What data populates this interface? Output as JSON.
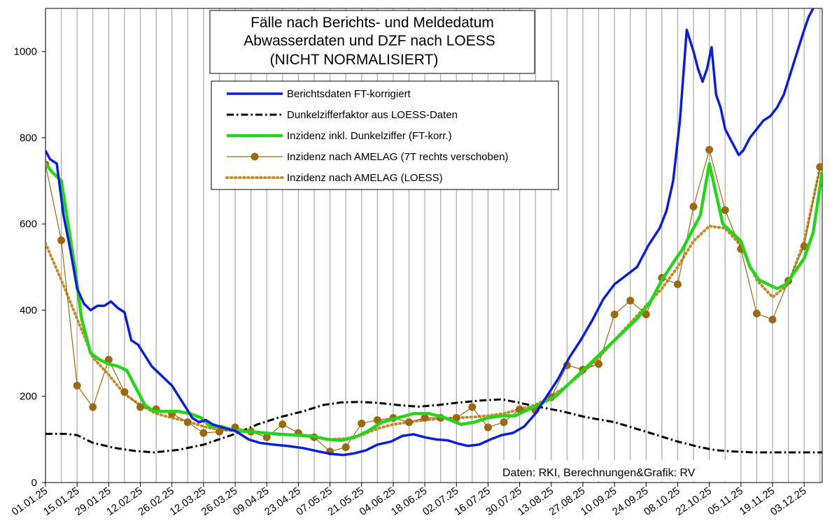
{
  "chart_data": {
    "type": "line",
    "title": [
      "Fälle nach Berichts- und Meldedatum",
      "Abwasserdaten und DZF nach LOESS",
      "(NICHT NORMALISIERT)"
    ],
    "xlabel": "",
    "ylabel": "",
    "credit": "Daten: RKI, Berechnungen&Grafik: RV",
    "ylim": [
      0,
      1100
    ],
    "yticks": [
      0,
      200,
      400,
      600,
      800,
      1000
    ],
    "xlim": [
      "2025-01-01",
      "2025-12-11"
    ],
    "xticks": [
      "01.01.25",
      "15.01.25",
      "29.01.25",
      "12.02.25",
      "26.02.25",
      "12.03.25",
      "26.03.25",
      "09.04.25",
      "23.04.25",
      "07.05.25",
      "21.05.25",
      "04.06.25",
      "18.06.25",
      "02.07.25",
      "16.07.25",
      "30.07.25",
      "13.08.25",
      "27.08.25",
      "10.09.25",
      "24.09.25",
      "08.10.25",
      "22.10.25",
      "05.11.25",
      "19.11.25",
      "03.12.25"
    ],
    "grid": "vertical-weekly",
    "legend": "top-center",
    "series": [
      {
        "name": "Berichtsdaten FT-korrigiert",
        "color": "#0a1fd6",
        "style": "solid",
        "x": [
          "2025-01-01",
          "2025-01-03",
          "2025-01-06",
          "2025-01-09",
          "2025-01-12",
          "2025-01-15",
          "2025-01-18",
          "2025-01-21",
          "2025-01-24",
          "2025-01-27",
          "2025-01-30",
          "2025-02-02",
          "2025-02-05",
          "2025-02-08",
          "2025-02-11",
          "2025-02-14",
          "2025-02-17",
          "2025-02-20",
          "2025-02-23",
          "2025-02-26",
          "2025-03-01",
          "2025-03-04",
          "2025-03-07",
          "2025-03-10",
          "2025-03-13",
          "2025-03-16",
          "2025-03-19",
          "2025-03-22",
          "2025-03-26",
          "2025-04-01",
          "2025-04-06",
          "2025-04-12",
          "2025-04-18",
          "2025-04-25",
          "2025-05-02",
          "2025-05-08",
          "2025-05-13",
          "2025-05-18",
          "2025-05-23",
          "2025-05-28",
          "2025-06-03",
          "2025-06-08",
          "2025-06-13",
          "2025-06-18",
          "2025-06-23",
          "2025-06-28",
          "2025-07-03",
          "2025-07-07",
          "2025-07-12",
          "2025-07-17",
          "2025-07-22",
          "2025-07-27",
          "2025-08-01",
          "2025-08-06",
          "2025-08-11",
          "2025-08-16",
          "2025-08-21",
          "2025-08-26",
          "2025-08-31",
          "2025-09-05",
          "2025-09-10",
          "2025-09-15",
          "2025-09-20",
          "2025-09-25",
          "2025-09-30",
          "2025-10-03",
          "2025-10-06",
          "2025-10-09",
          "2025-10-12",
          "2025-10-15",
          "2025-10-17",
          "2025-10-19",
          "2025-10-21",
          "2025-10-23",
          "2025-10-25",
          "2025-10-27",
          "2025-10-29",
          "2025-10-31",
          "2025-11-02",
          "2025-11-04",
          "2025-11-06",
          "2025-11-09",
          "2025-11-12",
          "2025-11-15",
          "2025-11-18",
          "2025-11-21",
          "2025-11-24",
          "2025-11-27",
          "2025-11-30",
          "2025-12-03",
          "2025-12-05",
          "2025-12-07"
        ],
        "y": [
          770,
          750,
          740,
          620,
          540,
          450,
          415,
          400,
          410,
          410,
          420,
          405,
          395,
          330,
          320,
          295,
          270,
          255,
          240,
          225,
          200,
          175,
          150,
          140,
          145,
          135,
          130,
          125,
          120,
          100,
          92,
          88,
          85,
          80,
          72,
          66,
          64,
          68,
          75,
          88,
          95,
          108,
          112,
          105,
          100,
          98,
          90,
          85,
          88,
          100,
          110,
          115,
          130,
          160,
          200,
          240,
          290,
          330,
          375,
          425,
          460,
          480,
          500,
          550,
          590,
          630,
          700,
          840,
          1050,
          1000,
          960,
          930,
          960,
          1010,
          900,
          870,
          820,
          800,
          780,
          760,
          770,
          800,
          820,
          840,
          850,
          870,
          900,
          950,
          1000,
          1050,
          1080,
          1100
        ]
      },
      {
        "name": "Dunkelzifferfaktor aus LOESS-Daten",
        "color": "#000000",
        "style": "dashdot",
        "x": [
          "2025-01-01",
          "2025-01-10",
          "2025-01-15",
          "2025-01-22",
          "2025-02-01",
          "2025-02-10",
          "2025-02-18",
          "2025-03-01",
          "2025-03-12",
          "2025-03-26",
          "2025-04-05",
          "2025-04-15",
          "2025-04-25",
          "2025-05-04",
          "2025-05-12",
          "2025-05-20",
          "2025-05-28",
          "2025-06-06",
          "2025-06-15",
          "2025-06-24",
          "2025-07-02",
          "2025-07-12",
          "2025-07-22",
          "2025-07-30",
          "2025-08-08",
          "2025-08-18",
          "2025-08-28",
          "2025-09-10",
          "2025-09-24",
          "2025-10-08",
          "2025-10-18",
          "2025-10-25",
          "2025-11-02",
          "2025-11-10",
          "2025-11-20",
          "2025-12-01",
          "2025-12-11"
        ],
        "y": [
          113,
          113,
          110,
          92,
          80,
          73,
          70,
          76,
          88,
          113,
          135,
          152,
          165,
          180,
          186,
          187,
          185,
          180,
          176,
          180,
          185,
          190,
          193,
          185,
          175,
          165,
          152,
          140,
          118,
          95,
          82,
          75,
          72,
          70,
          70,
          70,
          70
        ]
      },
      {
        "name": "Inzidenz inkl. Dunkelziffer (FT-korr.)",
        "color": "#26d41c",
        "style": "solid",
        "x": [
          "2025-01-01",
          "2025-01-04",
          "2025-01-08",
          "2025-01-11",
          "2025-01-14",
          "2025-01-17",
          "2025-01-21",
          "2025-01-25",
          "2025-01-29",
          "2025-02-02",
          "2025-02-06",
          "2025-02-10",
          "2025-02-14",
          "2025-02-18",
          "2025-02-23",
          "2025-03-01",
          "2025-03-06",
          "2025-03-11",
          "2025-03-15",
          "2025-03-20",
          "2025-03-26",
          "2025-04-02",
          "2025-04-08",
          "2025-04-15",
          "2025-04-22",
          "2025-04-29",
          "2025-05-06",
          "2025-05-12",
          "2025-05-18",
          "2025-05-24",
          "2025-05-30",
          "2025-06-06",
          "2025-06-13",
          "2025-06-20",
          "2025-06-27",
          "2025-07-04",
          "2025-07-10",
          "2025-07-16",
          "2025-07-22",
          "2025-07-28",
          "2025-08-03",
          "2025-08-09",
          "2025-08-15",
          "2025-08-21",
          "2025-08-27",
          "2025-09-02",
          "2025-09-08",
          "2025-09-14",
          "2025-09-20",
          "2025-09-26",
          "2025-10-01",
          "2025-10-06",
          "2025-10-10",
          "2025-10-14",
          "2025-10-18",
          "2025-10-22",
          "2025-10-25",
          "2025-10-28",
          "2025-11-01",
          "2025-11-05",
          "2025-11-09",
          "2025-11-13",
          "2025-11-17",
          "2025-11-21",
          "2025-11-25",
          "2025-11-29",
          "2025-12-03",
          "2025-12-07",
          "2025-12-11"
        ],
        "y": [
          740,
          720,
          700,
          600,
          500,
          380,
          300,
          285,
          275,
          270,
          260,
          220,
          180,
          165,
          165,
          165,
          160,
          150,
          130,
          130,
          120,
          118,
          115,
          112,
          110,
          108,
          100,
          98,
          105,
          120,
          140,
          150,
          160,
          160,
          150,
          135,
          140,
          150,
          155,
          155,
          170,
          185,
          200,
          230,
          260,
          290,
          320,
          350,
          380,
          420,
          470,
          510,
          540,
          580,
          620,
          740,
          670,
          600,
          580,
          560,
          500,
          470,
          460,
          450,
          460,
          490,
          520,
          580,
          720
        ]
      },
      {
        "name": "Inzidenz nach AMELAG (7T rechts verschoben)",
        "color": "#9a6a10",
        "style": "markers",
        "x": [
          "2025-01-01",
          "2025-01-08",
          "2025-01-15",
          "2025-01-22",
          "2025-01-29",
          "2025-02-05",
          "2025-02-12",
          "2025-02-19",
          "2025-02-26",
          "2025-03-05",
          "2025-03-12",
          "2025-03-19",
          "2025-03-26",
          "2025-04-02",
          "2025-04-09",
          "2025-04-16",
          "2025-04-23",
          "2025-04-30",
          "2025-05-07",
          "2025-05-14",
          "2025-05-21",
          "2025-05-28",
          "2025-06-04",
          "2025-06-11",
          "2025-06-18",
          "2025-06-25",
          "2025-07-02",
          "2025-07-09",
          "2025-07-16",
          "2025-07-23",
          "2025-07-30",
          "2025-08-06",
          "2025-08-13",
          "2025-08-20",
          "2025-08-27",
          "2025-09-03",
          "2025-09-10",
          "2025-09-17",
          "2025-09-24",
          "2025-10-01",
          "2025-10-08",
          "2025-10-15",
          "2025-10-22",
          "2025-10-29",
          "2025-11-05",
          "2025-11-12",
          "2025-11-19",
          "2025-11-26",
          "2025-12-03",
          "2025-12-10"
        ],
        "y": [
          738,
          562,
          225,
          175,
          285,
          210,
          175,
          170,
          160,
          140,
          115,
          118,
          128,
          118,
          105,
          135,
          115,
          105,
          72,
          82,
          137,
          145,
          150,
          140,
          150,
          150,
          150,
          175,
          128,
          140,
          170,
          168,
          198,
          272,
          262,
          275,
          390,
          422,
          390,
          475,
          460,
          640,
          772,
          632,
          542,
          392,
          378,
          468,
          548,
          732
        ]
      },
      {
        "name": "Inzidenz nach AMELAG (LOESS)",
        "color": "#c88a2a",
        "style": "dotted",
        "x": [
          "2025-01-01",
          "2025-01-08",
          "2025-01-15",
          "2025-01-22",
          "2025-01-29",
          "2025-02-05",
          "2025-02-12",
          "2025-02-19",
          "2025-02-26",
          "2025-03-05",
          "2025-03-12",
          "2025-03-19",
          "2025-03-26",
          "2025-04-02",
          "2025-04-09",
          "2025-04-16",
          "2025-04-23",
          "2025-04-30",
          "2025-05-07",
          "2025-05-14",
          "2025-05-21",
          "2025-05-28",
          "2025-06-04",
          "2025-06-11",
          "2025-06-18",
          "2025-06-25",
          "2025-07-02",
          "2025-07-09",
          "2025-07-16",
          "2025-07-23",
          "2025-07-30",
          "2025-08-06",
          "2025-08-13",
          "2025-08-20",
          "2025-08-27",
          "2025-09-03",
          "2025-09-10",
          "2025-09-17",
          "2025-09-24",
          "2025-10-01",
          "2025-10-08",
          "2025-10-15",
          "2025-10-22",
          "2025-10-29",
          "2025-11-05",
          "2025-11-12",
          "2025-11-19",
          "2025-11-26",
          "2025-12-03",
          "2025-12-10"
        ],
        "y": [
          555,
          470,
          380,
          290,
          250,
          205,
          180,
          160,
          150,
          142,
          130,
          122,
          120,
          118,
          115,
          112,
          110,
          105,
          100,
          102,
          110,
          125,
          135,
          140,
          145,
          148,
          150,
          152,
          155,
          160,
          170,
          180,
          200,
          225,
          255,
          290,
          330,
          370,
          410,
          450,
          500,
          560,
          595,
          590,
          550,
          470,
          430,
          460,
          560,
          730
        ]
      }
    ]
  }
}
